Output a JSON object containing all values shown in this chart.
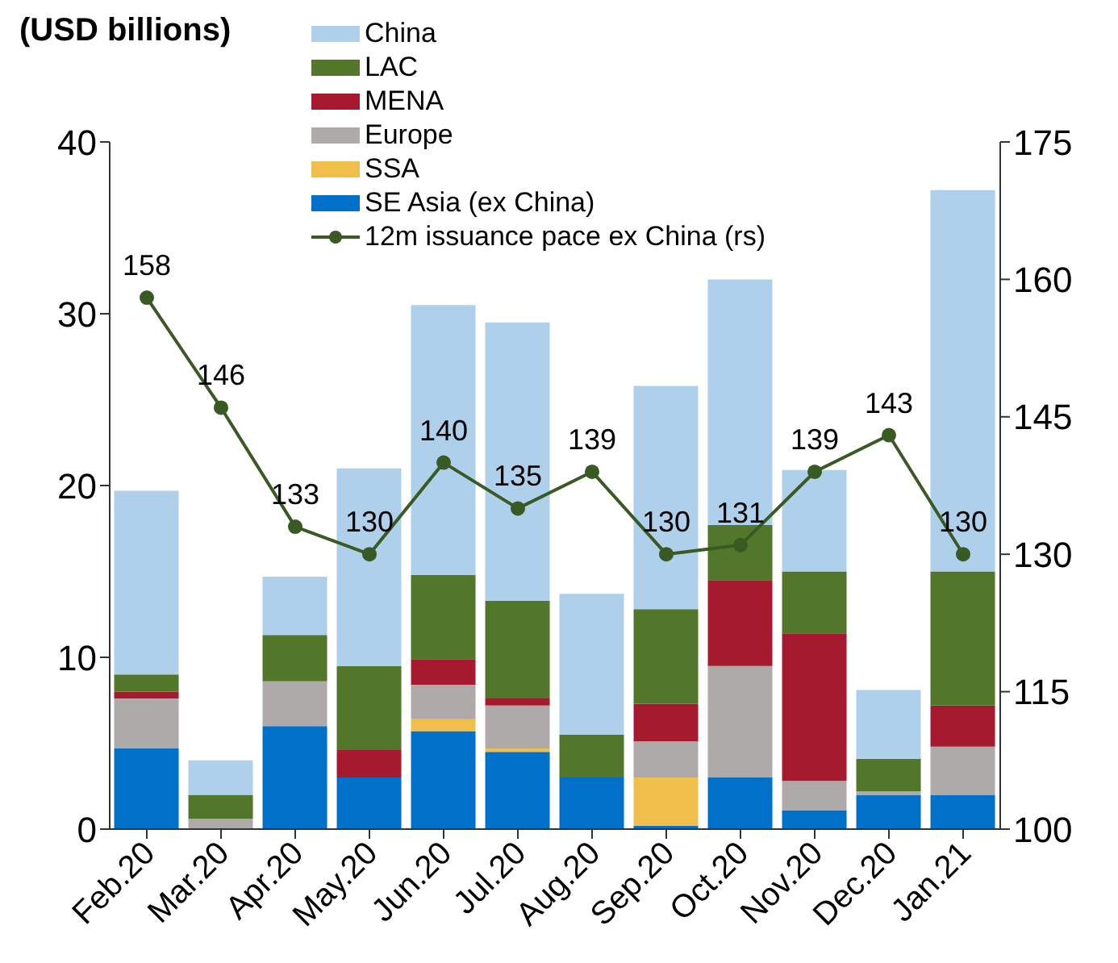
{
  "chart_data": {
    "type": "bar",
    "title": "(USD billions)",
    "stacked": true,
    "categories": [
      "Feb.20",
      "Mar.20",
      "Apr.20",
      "May.20",
      "Jun.20",
      "Jul.20",
      "Aug.20",
      "Sep.20",
      "Oct.20",
      "Nov.20",
      "Dec.20",
      "Jan.21"
    ],
    "series": [
      {
        "name": "SE Asia (ex China)",
        "color": "#0070c8",
        "values": [
          4.7,
          0,
          6.0,
          3.0,
          5.7,
          4.5,
          3.0,
          0.2,
          3.0,
          1.1,
          2.0,
          2.0
        ]
      },
      {
        "name": "SSA",
        "color": "#f0be4a",
        "values": [
          0,
          0,
          0,
          0,
          0.7,
          0.2,
          0,
          2.8,
          0,
          0,
          0,
          0
        ]
      },
      {
        "name": "Europe",
        "color": "#aeaaaa",
        "values": [
          2.9,
          0.6,
          2.6,
          0,
          2.0,
          2.5,
          0,
          2.1,
          6.5,
          1.7,
          0.2,
          2.8
        ]
      },
      {
        "name": "MENA",
        "color": "#a51a2e",
        "values": [
          0.4,
          0,
          0,
          1.6,
          1.5,
          0.4,
          0,
          2.2,
          5.0,
          8.6,
          0,
          2.4
        ]
      },
      {
        "name": "LAC",
        "color": "#52772b",
        "values": [
          1.0,
          1.4,
          2.7,
          4.9,
          4.9,
          5.7,
          2.5,
          5.5,
          3.2,
          3.6,
          1.9,
          7.8
        ]
      },
      {
        "name": "China",
        "color": "#aed0ea",
        "values": [
          10.7,
          2.0,
          3.4,
          11.5,
          15.7,
          16.2,
          8.2,
          13.0,
          14.3,
          5.9,
          4.0,
          22.2
        ]
      },
      {
        "name": "12m issuance pace ex China (rs)",
        "type": "line",
        "axis": "y2",
        "color": "#3a5a24",
        "marker": "circle",
        "values": [
          158,
          146,
          133,
          130,
          140,
          135,
          139,
          130,
          131,
          139,
          143,
          130
        ],
        "value_labels": [
          "158",
          "146",
          "133",
          "130",
          "140",
          "135",
          "139",
          "130",
          "131",
          "139",
          "143",
          "130"
        ]
      }
    ],
    "ylim": [
      0,
      40
    ],
    "yticks": [
      0,
      10,
      20,
      30,
      40
    ],
    "y2lim": [
      100,
      175
    ],
    "y2ticks": [
      100,
      115,
      130,
      145,
      160,
      175
    ],
    "legend": "top",
    "grid": false
  }
}
